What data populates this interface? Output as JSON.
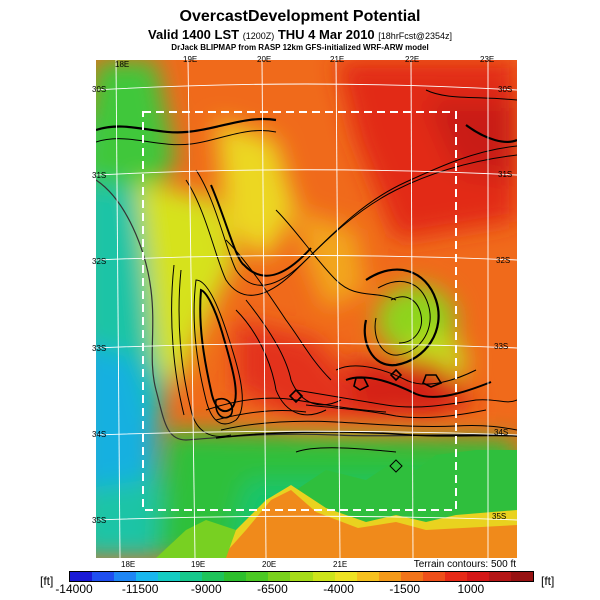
{
  "header": {
    "title": "OvercastDevelopment Potential",
    "valid": "Valid 1400 LST",
    "valid_code": "(1200Z)",
    "valid_date": "THU 4 Mar 2010",
    "fcst": "[18hrFcst@2354z]",
    "credit": "DrJack BLIPMAP from RASP 12km GFS-initialized WRF-ARW model"
  },
  "axes": {
    "lon_top": [
      "18E",
      "19E",
      "20E",
      "21E",
      "22E",
      "23E"
    ],
    "lon_bottom": [
      "18E",
      "19E",
      "20E",
      "21E"
    ],
    "lat_left": [
      "30S",
      "31S",
      "32S",
      "33S",
      "34S",
      "35S"
    ],
    "lat_right": [
      "30S",
      "31S",
      "32S",
      "33S",
      "34S",
      "35S"
    ]
  },
  "terrain_note": "Terrain contours: 500 ft",
  "colorbar": {
    "unit_left": "[ft]",
    "unit_right": "[ft]",
    "ticks": [
      "-14000",
      "-11500",
      "-9000",
      "-6500",
      "-4000",
      "-1500",
      "1000"
    ],
    "colors": [
      "#1a1ad6",
      "#1f4ff0",
      "#1e86f5",
      "#19b7ee",
      "#14ccc3",
      "#16c88c",
      "#1ec45a",
      "#2cbf2c",
      "#4bc924",
      "#79d21d",
      "#a6dc1a",
      "#cde41b",
      "#eee323",
      "#f6c11f",
      "#f49a1a",
      "#f2741a",
      "#ee4f1a",
      "#e62a17",
      "#d41717",
      "#b41616",
      "#971212"
    ]
  }
}
